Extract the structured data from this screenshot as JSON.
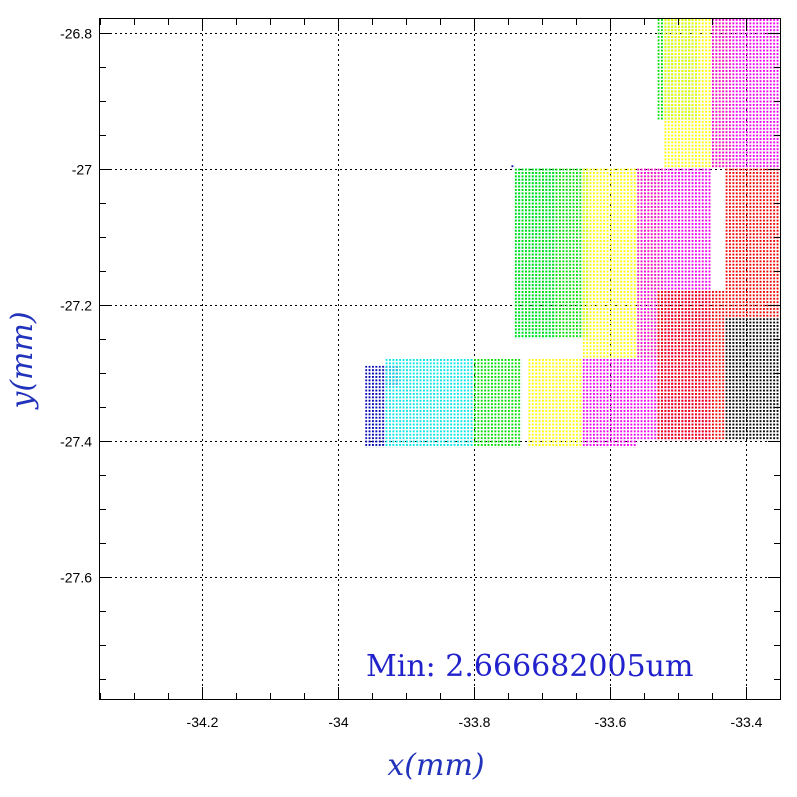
{
  "chart_data": {
    "type": "scatter",
    "xlabel": "x(mm)",
    "ylabel": "y(mm)",
    "xlim": [
      -34.35,
      -33.35
    ],
    "ylim": [
      -27.78,
      -26.78
    ],
    "x_ticks": [
      -34.2,
      -34.0,
      -33.8,
      -33.6,
      -33.4
    ],
    "x_tick_labels": [
      "-34.2",
      "-34",
      "-33.8",
      "-33.6",
      "-33.4"
    ],
    "y_ticks": [
      -26.8,
      -27.0,
      -27.2,
      -27.4,
      -27.6
    ],
    "y_tick_labels": [
      "-26.8",
      "-27",
      "-27.2",
      "-27.4",
      "-27.6"
    ],
    "grid": true,
    "annotation": "Min: 2.666682005um",
    "pixel_pitch_mm": 0.005,
    "series": [
      {
        "color": "#0000b0",
        "regions": [
          {
            "x": [
              -33.96,
              -33.93
            ],
            "y": [
              -27.41,
              -27.29
            ]
          },
          {
            "x": [
              -33.93,
              -33.91
            ],
            "y": [
              -27.32,
              -27.29
            ]
          },
          {
            "x": [
              -33.745,
              -33.74
            ],
            "y": [
              -27.0,
              -26.995
            ]
          }
        ]
      },
      {
        "color": "#00e5e5",
        "regions": [
          {
            "x": [
              -33.93,
              -33.87
            ],
            "y": [
              -27.41,
              -27.28
            ]
          },
          {
            "x": [
              -33.87,
              -33.8
            ],
            "y": [
              -27.41,
              -27.28
            ]
          },
          {
            "x": [
              -33.74,
              -33.68
            ],
            "y": [
              -27.25,
              -27.0
            ]
          }
        ]
      },
      {
        "color": "#00dd00",
        "regions": [
          {
            "x": [
              -33.8,
              -33.73
            ],
            "y": [
              -27.41,
              -27.28
            ]
          },
          {
            "x": [
              -33.74,
              -33.63
            ],
            "y": [
              -27.25,
              -27.0
            ]
          },
          {
            "x": [
              -33.53,
              -33.47
            ],
            "y": [
              -26.93,
              -26.77
            ]
          }
        ]
      },
      {
        "color": "#ffff00",
        "regions": [
          {
            "x": [
              -33.72,
              -33.64
            ],
            "y": [
              -27.41,
              -27.28
            ]
          },
          {
            "x": [
              -33.64,
              -33.52
            ],
            "y": [
              -27.28,
              -27.0
            ]
          },
          {
            "x": [
              -33.52,
              -33.42
            ],
            "y": [
              -27.0,
              -26.77
            ]
          }
        ]
      },
      {
        "color": "#ee00ee",
        "regions": [
          {
            "x": [
              -33.64,
              -33.56
            ],
            "y": [
              -27.41,
              -27.28
            ]
          },
          {
            "x": [
              -33.56,
              -33.45
            ],
            "y": [
              -27.4,
              -27.0
            ]
          },
          {
            "x": [
              -33.45,
              -33.35
            ],
            "y": [
              -27.0,
              -26.77
            ]
          }
        ]
      },
      {
        "color": "#ee0000",
        "regions": [
          {
            "x": [
              -33.53,
              -33.43
            ],
            "y": [
              -27.4,
              -27.18
            ]
          },
          {
            "x": [
              -33.43,
              -33.35
            ],
            "y": [
              -27.22,
              -27.0
            ]
          }
        ]
      },
      {
        "color": "#000000",
        "regions": [
          {
            "x": [
              -33.43,
              -33.35
            ],
            "y": [
              -27.4,
              -27.22
            ]
          }
        ]
      }
    ]
  }
}
